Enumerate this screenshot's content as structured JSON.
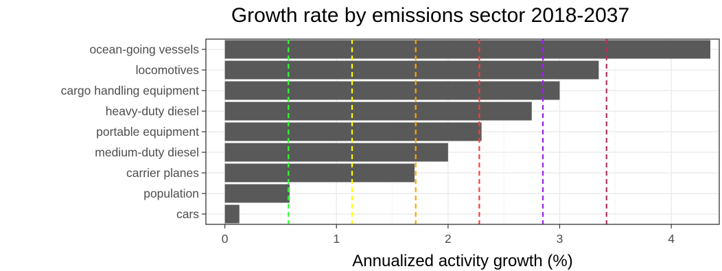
{
  "chart_data": {
    "type": "bar",
    "orientation": "horizontal",
    "title": "Growth rate by emissions sector 2018-2037",
    "xlabel": "Annualized activity growth (%)",
    "ylabel": "",
    "xlim": [
      -0.17,
      4.43
    ],
    "xticks": [
      0,
      1,
      2,
      3,
      4
    ],
    "grid": true,
    "legend": "none",
    "bar_color": "#595959",
    "categories": [
      "cars",
      "population",
      "carrier planes",
      "medium-duty diesel",
      "portable equipment",
      "heavy-duty diesel",
      "cargo handling  equipment",
      "locomotives",
      "ocean-going vessels"
    ],
    "values": [
      0.13,
      0.58,
      1.7,
      2.0,
      2.3,
      2.75,
      3.0,
      3.35,
      4.35
    ],
    "reference_lines": [
      {
        "x": 0.57,
        "color": "#33ff33"
      },
      {
        "x": 1.14,
        "color": "#ffff00"
      },
      {
        "x": 1.71,
        "color": "#ffa500"
      },
      {
        "x": 2.28,
        "color": "#ff3b3b"
      },
      {
        "x": 2.85,
        "color": "#a020f0"
      },
      {
        "x": 3.42,
        "color": "#b03060"
      }
    ]
  }
}
